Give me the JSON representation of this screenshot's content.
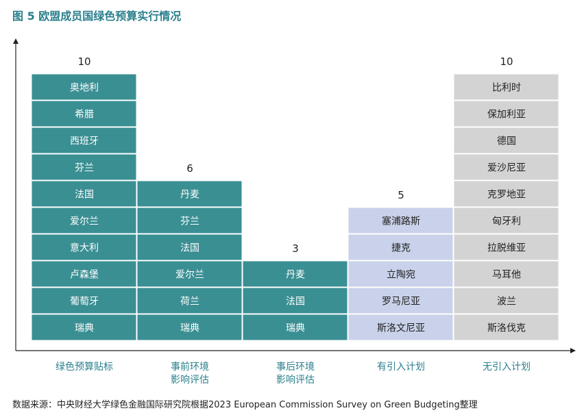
{
  "title": "图 5 欧盟成员国绿色预算实行情况",
  "source": "数据来源：中央财经大学绿色金融国际研究院根据2023 European Commission Survey on Green Budgeting整理",
  "colors": {
    "teal": "#3a8f93",
    "lavender": "#c9d2ea",
    "gray": "#d3d3d3",
    "category_text": "#2a7f8c"
  },
  "chart_data": {
    "type": "bar",
    "categories": [
      [
        "绿色预算贴标"
      ],
      [
        "事前环境",
        "影响评估"
      ],
      [
        "事后环境",
        "影响评估"
      ],
      [
        "有引入计划"
      ],
      [
        "无引入计划"
      ]
    ],
    "values": [
      10,
      6,
      3,
      5,
      10
    ],
    "show_count_labels": [
      true,
      true,
      true,
      true,
      true
    ],
    "column_colors": [
      "teal",
      "teal",
      "teal",
      "lavender",
      "gray"
    ],
    "cells": [
      [
        "瑞典",
        "葡萄牙",
        "卢森堡",
        "意大利",
        "爱尔兰",
        "法国",
        "芬兰",
        "西班牙",
        "希腊",
        "奥地利"
      ],
      [
        "瑞典",
        "荷兰",
        "爱尔兰",
        "法国",
        "芬兰",
        "丹麦"
      ],
      [
        "瑞典",
        "法国",
        "丹麦"
      ],
      [
        "斯洛文尼亚",
        "罗马尼亚",
        "立陶宛",
        "捷克",
        "塞浦路斯"
      ],
      [
        "斯洛伐克",
        "波兰",
        "马耳他",
        "拉脱维亚",
        "匈牙利",
        "克罗地亚",
        "爱沙尼亚",
        "德国",
        "保加利亚",
        "比利时"
      ]
    ]
  }
}
